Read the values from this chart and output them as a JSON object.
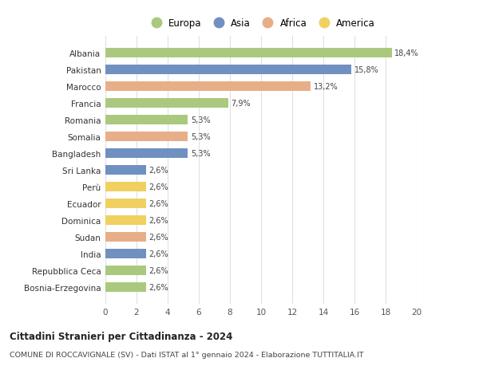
{
  "categories": [
    "Bosnia-Erzegovina",
    "Repubblica Ceca",
    "India",
    "Sudan",
    "Dominica",
    "Ecuador",
    "Perù",
    "Sri Lanka",
    "Bangladesh",
    "Somalia",
    "Romania",
    "Francia",
    "Marocco",
    "Pakistan",
    "Albania"
  ],
  "values": [
    2.6,
    2.6,
    2.6,
    2.6,
    2.6,
    2.6,
    2.6,
    2.6,
    5.3,
    5.3,
    5.3,
    7.9,
    13.2,
    15.8,
    18.4
  ],
  "labels": [
    "2,6%",
    "2,6%",
    "2,6%",
    "2,6%",
    "2,6%",
    "2,6%",
    "2,6%",
    "2,6%",
    "5,3%",
    "5,3%",
    "5,3%",
    "7,9%",
    "13,2%",
    "15,8%",
    "18,4%"
  ],
  "continents": [
    "Europa",
    "Europa",
    "Asia",
    "Africa",
    "America",
    "America",
    "America",
    "Asia",
    "Asia",
    "Africa",
    "Europa",
    "Europa",
    "Africa",
    "Asia",
    "Europa"
  ],
  "colors": {
    "Europa": "#aac97e",
    "Asia": "#7090c0",
    "Africa": "#e8ae88",
    "America": "#f0d060"
  },
  "legend_order": [
    "Europa",
    "Asia",
    "Africa",
    "America"
  ],
  "title": "Cittadini Stranieri per Cittadinanza - 2024",
  "subtitle": "COMUNE DI ROCCAVIGNALE (SV) - Dati ISTAT al 1° gennaio 2024 - Elaborazione TUTTITALIA.IT",
  "xlim": [
    0,
    20
  ],
  "xticks": [
    0,
    2,
    4,
    6,
    8,
    10,
    12,
    14,
    16,
    18,
    20
  ],
  "background_color": "#ffffff",
  "grid_color": "#e0e0e0"
}
